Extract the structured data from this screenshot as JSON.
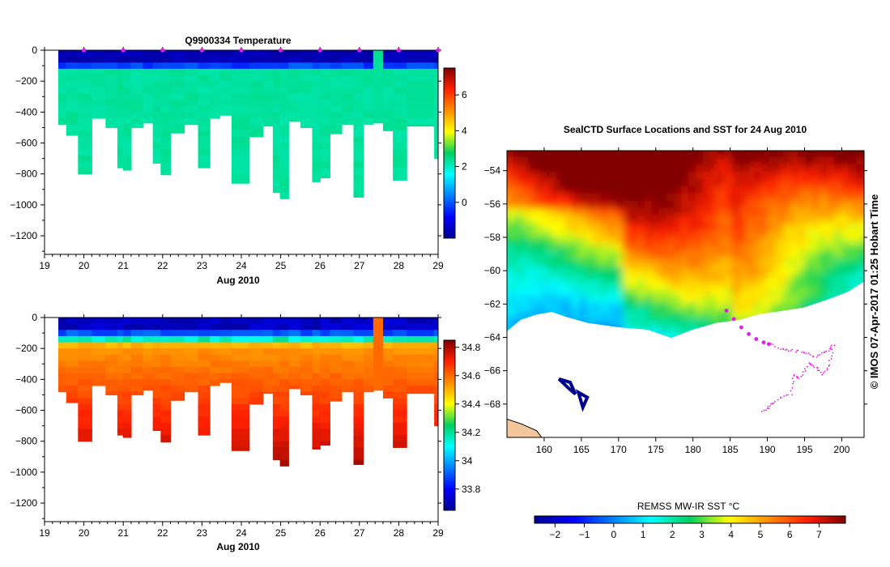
{
  "chart_data": [
    {
      "type": "heatmap",
      "id": "temperature",
      "title": "Q9900334  Temperature",
      "xlabel": "Aug 2010",
      "xlim": [
        19,
        29
      ],
      "ylim": [
        -1320,
        0
      ],
      "xticks": [
        "19",
        "20",
        "21",
        "22",
        "23",
        "24",
        "25",
        "26",
        "27",
        "28",
        "29"
      ],
      "yticks": [
        "0",
        "−200",
        "−400",
        "−600",
        "−800",
        "−1000",
        "−1200"
      ],
      "colorbar": {
        "range": [
          -2,
          7.5
        ],
        "ticks": [
          "6",
          "4",
          "2",
          "0"
        ]
      },
      "profile_markers_x": [
        20,
        21,
        22,
        23,
        24,
        25,
        26,
        27,
        28,
        29
      ],
      "profiles": [
        {
          "x0": 19.35,
          "x1": 19.55,
          "bottom": -480
        },
        {
          "x0": 19.55,
          "x1": 19.85,
          "bottom": -550
        },
        {
          "x0": 19.85,
          "x1": 20.2,
          "bottom": -800
        },
        {
          "x0": 20.2,
          "x1": 20.55,
          "bottom": -440
        },
        {
          "x0": 20.55,
          "x1": 20.85,
          "bottom": -500
        },
        {
          "x0": 20.85,
          "x1": 20.99,
          "bottom": -760
        },
        {
          "x0": 20.99,
          "x1": 21.2,
          "bottom": -775
        },
        {
          "x0": 21.2,
          "x1": 21.5,
          "bottom": -500
        },
        {
          "x0": 21.5,
          "x1": 21.75,
          "bottom": -470
        },
        {
          "x0": 21.75,
          "x1": 21.95,
          "bottom": -730
        },
        {
          "x0": 21.95,
          "x1": 22.2,
          "bottom": -805
        },
        {
          "x0": 22.2,
          "x1": 22.55,
          "bottom": -535
        },
        {
          "x0": 22.55,
          "x1": 22.9,
          "bottom": -480
        },
        {
          "x0": 22.9,
          "x1": 23.2,
          "bottom": -760
        },
        {
          "x0": 23.2,
          "x1": 23.45,
          "bottom": -440
        },
        {
          "x0": 23.45,
          "x1": 23.75,
          "bottom": -420
        },
        {
          "x0": 23.75,
          "x1": 24.2,
          "bottom": -860
        },
        {
          "x0": 24.2,
          "x1": 24.55,
          "bottom": -560
        },
        {
          "x0": 24.55,
          "x1": 24.8,
          "bottom": -490
        },
        {
          "x0": 24.8,
          "x1": 24.98,
          "bottom": -920
        },
        {
          "x0": 24.98,
          "x1": 25.2,
          "bottom": -960
        },
        {
          "x0": 25.2,
          "x1": 25.5,
          "bottom": -460
        },
        {
          "x0": 25.5,
          "x1": 25.8,
          "bottom": -500
        },
        {
          "x0": 25.8,
          "x1": 26.0,
          "bottom": -850
        },
        {
          "x0": 26.0,
          "x1": 26.25,
          "bottom": -825
        },
        {
          "x0": 26.25,
          "x1": 26.55,
          "bottom": -540
        },
        {
          "x0": 26.55,
          "x1": 26.85,
          "bottom": -480
        },
        {
          "x0": 26.85,
          "x1": 27.1,
          "bottom": -950
        },
        {
          "x0": 27.1,
          "x1": 27.35,
          "bottom": -480
        },
        {
          "x0": 27.35,
          "x1": 27.6,
          "bottom": -470
        },
        {
          "x0": 27.6,
          "x1": 27.85,
          "bottom": -520
        },
        {
          "x0": 27.85,
          "x1": 28.2,
          "bottom": -840
        },
        {
          "x0": 28.2,
          "x1": 28.9,
          "bottom": -490
        },
        {
          "x0": 28.9,
          "x1": 29.1,
          "bottom": -700
        }
      ]
    },
    {
      "type": "heatmap",
      "id": "salinity",
      "title": "",
      "xlabel": "Aug 2010",
      "xlim": [
        19,
        29
      ],
      "ylim": [
        -1320,
        0
      ],
      "xticks": [
        "19",
        "20",
        "21",
        "22",
        "23",
        "24",
        "25",
        "26",
        "27",
        "28",
        "29"
      ],
      "yticks": [
        "0",
        "−200",
        "−400",
        "−600",
        "−800",
        "−1000",
        "−1200"
      ],
      "colorbar": {
        "range": [
          33.65,
          34.85
        ],
        "ticks": [
          "34.8",
          "34.6",
          "34.4",
          "34.2",
          "34",
          "33.8"
        ]
      }
    },
    {
      "type": "heatmap",
      "id": "sst_map",
      "title": "SealCTD Surface Locations and SST for 24 Aug 2010",
      "xlim": [
        155,
        203
      ],
      "ylim": [
        -70,
        -52.8
      ],
      "xticks": [
        "160",
        "165",
        "170",
        "175",
        "180",
        "185",
        "190",
        "195",
        "200"
      ],
      "yticks": [
        "−54",
        "−56",
        "−58",
        "−60",
        "−62",
        "−64",
        "−66",
        "−68"
      ],
      "colorbar": {
        "title": "REMSS MW-IR SST °C",
        "range": [
          -2.7,
          7.9
        ],
        "ticks": [
          "−2",
          "−1",
          "0",
          "1",
          "2",
          "3",
          "4",
          "5",
          "6",
          "7"
        ]
      },
      "recent_track": [
        [
          184.5,
          -62.4
        ],
        [
          185.5,
          -62.9
        ],
        [
          186.5,
          -63.4
        ],
        [
          187.5,
          -63.8
        ],
        [
          188.5,
          -64.1
        ],
        [
          189.5,
          -64.3
        ],
        [
          190.2,
          -64.4
        ]
      ],
      "older_track": [
        [
          190.2,
          -64.4
        ],
        [
          192,
          -64.7
        ],
        [
          193.5,
          -64.8
        ],
        [
          195,
          -64.9
        ],
        [
          196.5,
          -65.2
        ],
        [
          198,
          -64.8
        ],
        [
          198.9,
          -64.5
        ],
        [
          198.3,
          -65.6
        ],
        [
          197.5,
          -66.3
        ],
        [
          196.5,
          -65.8
        ],
        [
          195.5,
          -65.6
        ],
        [
          194.5,
          -66.4
        ],
        [
          193.5,
          -66.3
        ],
        [
          193.2,
          -67.4
        ],
        [
          191.3,
          -67.7
        ],
        [
          190.2,
          -68.2
        ],
        [
          189.2,
          -68.5
        ]
      ]
    }
  ],
  "side_text": "© IMOS 07-Apr-2017 01:25 Hobart Time",
  "colors": {
    "marker": "#e020e0",
    "land": "#f3c79b"
  }
}
